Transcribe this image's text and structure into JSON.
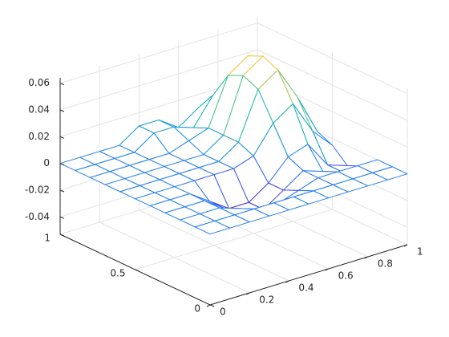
{
  "chart_data": {
    "type": "mesh",
    "x": [
      0,
      0.1,
      0.2,
      0.3,
      0.4,
      0.5,
      0.6,
      0.7,
      0.8,
      0.9,
      1
    ],
    "y": [
      0,
      0.1,
      0.2,
      0.3,
      0.4,
      0.5,
      0.6,
      0.7,
      0.8,
      0.9,
      1
    ],
    "z": [
      [
        0,
        0,
        0,
        0,
        0,
        0,
        0,
        0,
        0,
        0,
        0
      ],
      [
        0,
        0,
        0,
        0,
        0,
        0,
        0,
        0,
        0,
        0,
        0
      ],
      [
        0,
        0,
        0,
        -0.005,
        -0.01,
        -0.01,
        -0.005,
        0,
        0,
        0,
        0
      ],
      [
        0,
        0,
        0,
        -0.01,
        -0.02,
        -0.02,
        -0.01,
        0,
        -0.005,
        -0.01,
        -0.01
      ],
      [
        0,
        0,
        0,
        -0.01,
        -0.02,
        -0.02,
        -0.01,
        0.005,
        0.01,
        -0.01,
        -0.015
      ],
      [
        0,
        0,
        0,
        0,
        0,
        0,
        0.005,
        0.025,
        0.035,
        0.01,
        -0.005
      ],
      [
        0,
        0,
        0,
        0,
        0,
        0,
        0.01,
        0.045,
        0.055,
        0.03,
        0
      ],
      [
        0,
        0,
        0,
        0,
        0,
        0,
        0.01,
        0.05,
        0.06,
        0.035,
        0
      ],
      [
        0,
        0,
        0,
        0,
        0,
        0.005,
        0.01,
        0.045,
        0.055,
        0.03,
        0
      ],
      [
        0,
        0,
        0,
        0,
        0.01,
        0.01,
        0.005,
        0.025,
        0.035,
        0.01,
        0
      ],
      [
        0,
        0,
        0,
        0,
        0.01,
        0.01,
        0,
        0.01,
        0.01,
        0,
        0
      ]
    ],
    "xlim": [
      0,
      1
    ],
    "ylim": [
      0,
      1
    ],
    "zlim": [
      -0.053,
      0.064
    ],
    "xticks": [
      0,
      0.2,
      0.4,
      0.6,
      0.8,
      1
    ],
    "yticks": [
      0,
      0.5,
      1
    ],
    "zticks": [
      -0.04,
      -0.02,
      0,
      0.02,
      0.04,
      0.06
    ],
    "grid": true,
    "colormap": "parula"
  }
}
